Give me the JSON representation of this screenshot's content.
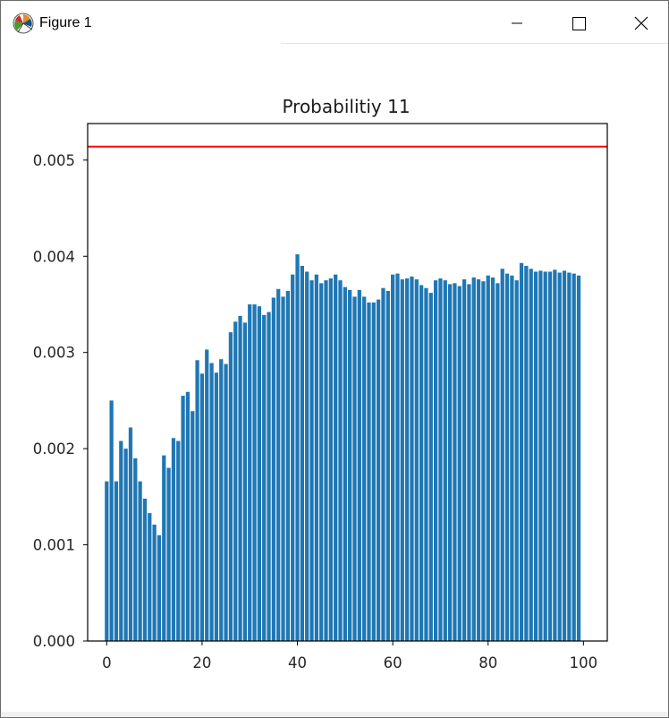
{
  "window": {
    "title": "Figure 1",
    "icon": "matplotlib-icon",
    "controls": [
      "minimize-icon",
      "maximize-icon",
      "close-icon"
    ]
  },
  "chart_data": {
    "type": "bar",
    "title": "Probabilitiy 11",
    "xlabel": "",
    "ylabel": "",
    "x": [
      0,
      1,
      2,
      3,
      4,
      5,
      6,
      7,
      8,
      9,
      10,
      11,
      12,
      13,
      14,
      15,
      16,
      17,
      18,
      19,
      20,
      21,
      22,
      23,
      24,
      25,
      26,
      27,
      28,
      29,
      30,
      31,
      32,
      33,
      34,
      35,
      36,
      37,
      38,
      39,
      40,
      41,
      42,
      43,
      44,
      45,
      46,
      47,
      48,
      49,
      50,
      51,
      52,
      53,
      54,
      55,
      56,
      57,
      58,
      59,
      60,
      61,
      62,
      63,
      64,
      65,
      66,
      67,
      68,
      69,
      70,
      71,
      72,
      73,
      74,
      75,
      76,
      77,
      78,
      79,
      80,
      81,
      82,
      83,
      84,
      85,
      86,
      87,
      88,
      89,
      90,
      91,
      92,
      93,
      94,
      95,
      96,
      97,
      98,
      99
    ],
    "values": [
      0.00166,
      0.0025,
      0.00166,
      0.00208,
      0.002,
      0.00222,
      0.0019,
      0.00166,
      0.00148,
      0.00133,
      0.00121,
      0.0011,
      0.00193,
      0.0018,
      0.00211,
      0.00208,
      0.00255,
      0.00259,
      0.00239,
      0.00292,
      0.00278,
      0.00303,
      0.00289,
      0.00279,
      0.00293,
      0.00288,
      0.00321,
      0.00332,
      0.00338,
      0.00331,
      0.0035,
      0.0035,
      0.00348,
      0.00339,
      0.00342,
      0.00357,
      0.00366,
      0.00358,
      0.00364,
      0.00381,
      0.00402,
      0.0039,
      0.00384,
      0.00375,
      0.00381,
      0.00372,
      0.00375,
      0.00377,
      0.00381,
      0.00375,
      0.00368,
      0.00365,
      0.00358,
      0.00365,
      0.00358,
      0.00352,
      0.00352,
      0.00355,
      0.00367,
      0.00364,
      0.00381,
      0.00382,
      0.00376,
      0.00377,
      0.00379,
      0.00376,
      0.0037,
      0.00367,
      0.00362,
      0.00375,
      0.00377,
      0.00375,
      0.00371,
      0.00372,
      0.00369,
      0.00376,
      0.00371,
      0.00378,
      0.00376,
      0.00374,
      0.0038,
      0.00378,
      0.00372,
      0.00387,
      0.00382,
      0.0038,
      0.00375,
      0.00393,
      0.0039,
      0.00387,
      0.00384,
      0.00385,
      0.00384,
      0.00384,
      0.00386,
      0.00383,
      0.00385,
      0.00383,
      0.00382,
      0.0038
    ],
    "bar_color": "#1f77b4",
    "hline": {
      "y": 0.00514,
      "color": "#ff0000"
    },
    "xlim": [
      -4,
      105
    ],
    "ylim": [
      0,
      0.00538
    ],
    "xticks": [
      0,
      20,
      40,
      60,
      80,
      100
    ],
    "xtick_labels": [
      "0",
      "20",
      "40",
      "60",
      "80",
      "100"
    ],
    "yticks": [
      0,
      0.001,
      0.002,
      0.003,
      0.004,
      0.005
    ],
    "ytick_labels": [
      "0.000",
      "0.001",
      "0.002",
      "0.003",
      "0.004",
      "0.005"
    ],
    "grid": false,
    "legend": "none"
  }
}
